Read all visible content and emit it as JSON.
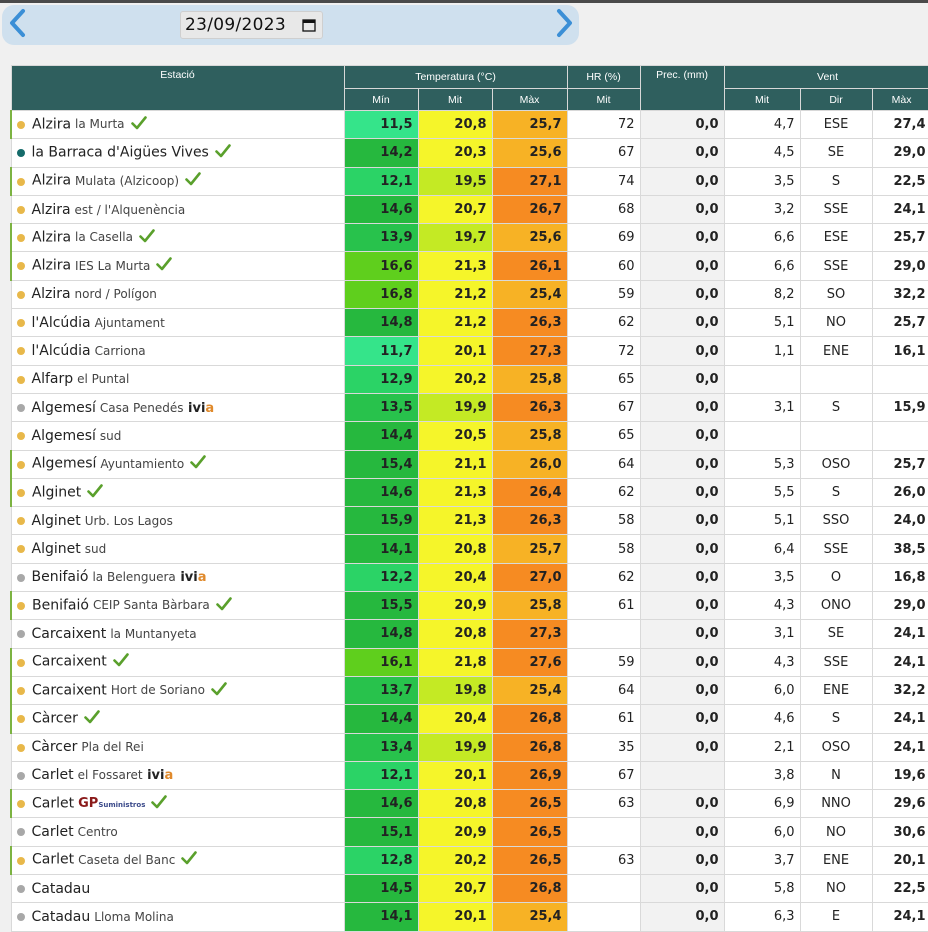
{
  "date": {
    "value": "23/09/2023"
  },
  "icons": {
    "prev": "chevron-left-icon",
    "next": "chevron-right-icon",
    "calendar": "calendar-icon",
    "check": "check-icon"
  },
  "colors": {
    "header_bg": "#2f5f5e",
    "check": "#5aa02c",
    "dot_orange": "#e8b84a",
    "dot_gray": "#a8a8a8",
    "dot_teal": "#156b6a"
  },
  "headers": {
    "station": "Estació",
    "temperature": "Temperatura (°C)",
    "hr": "HR (%)",
    "prec": "Prec. (mm)",
    "wind": "Vent",
    "min": "Mín",
    "mit": "Mit",
    "max": "Màx",
    "hr_mit": "Mit",
    "wind_mit": "Mit",
    "wind_dir": "Dir",
    "wind_max": "Màx"
  },
  "rows": [
    {
      "town": "Alzira",
      "sub": "la Murta",
      "check": true,
      "ivia": false,
      "gp": false,
      "dot": "#e8b84a",
      "bar": true,
      "min": "11,5",
      "mit": "20,8",
      "max": "25,7",
      "minc": "#35e48a",
      "mitc": "#f5f52a",
      "maxc": "#f7b225",
      "hr": "72",
      "prec": "0,0",
      "wmit": "4,7",
      "wdir": "ESE",
      "wmax": "27,4"
    },
    {
      "town": "la Barraca d'Aigües Vives",
      "sub": "",
      "check": true,
      "ivia": false,
      "gp": false,
      "dot": "#156b6a",
      "bar": false,
      "min": "14,2",
      "mit": "20,3",
      "max": "25,6",
      "minc": "#26b83e",
      "mitc": "#f5f52a",
      "maxc": "#f7b225",
      "hr": "67",
      "prec": "0,0",
      "wmit": "4,5",
      "wdir": "SE",
      "wmax": "29,0"
    },
    {
      "town": "Alzira",
      "sub": "Mulata (Alzicoop)",
      "check": true,
      "ivia": false,
      "gp": false,
      "dot": "#e8b84a",
      "bar": true,
      "min": "12,1",
      "mit": "19,5",
      "max": "27,1",
      "minc": "#2bd366",
      "mitc": "#c4ea24",
      "maxc": "#f68b22",
      "hr": "74",
      "prec": "0,0",
      "wmit": "3,5",
      "wdir": "S",
      "wmax": "22,5"
    },
    {
      "town": "Alzira",
      "sub": "est / l'Alquenència",
      "check": false,
      "ivia": false,
      "gp": false,
      "dot": "#e8b84a",
      "bar": false,
      "min": "14,6",
      "mit": "20,7",
      "max": "26,7",
      "minc": "#26b83e",
      "mitc": "#f5f52a",
      "maxc": "#f68b22",
      "hr": "68",
      "prec": "0,0",
      "wmit": "3,2",
      "wdir": "SSE",
      "wmax": "24,1"
    },
    {
      "town": "Alzira",
      "sub": "la Casella",
      "check": true,
      "ivia": false,
      "gp": false,
      "dot": "#e8b84a",
      "bar": true,
      "min": "13,9",
      "mit": "19,7",
      "max": "25,6",
      "minc": "#28c24c",
      "mitc": "#c4ea24",
      "maxc": "#f7b225",
      "hr": "69",
      "prec": "0,0",
      "wmit": "6,6",
      "wdir": "ESE",
      "wmax": "25,7"
    },
    {
      "town": "Alzira",
      "sub": "IES La Murta",
      "check": true,
      "ivia": false,
      "gp": false,
      "dot": "#e8b84a",
      "bar": true,
      "min": "16,6",
      "mit": "21,3",
      "max": "26,1",
      "minc": "#5fcf1d",
      "mitc": "#f5f52a",
      "maxc": "#f68b22",
      "hr": "60",
      "prec": "0,0",
      "wmit": "6,6",
      "wdir": "SSE",
      "wmax": "29,0"
    },
    {
      "town": "Alzira",
      "sub": "nord / Polígon",
      "check": false,
      "ivia": false,
      "gp": false,
      "dot": "#e8b84a",
      "bar": false,
      "min": "16,8",
      "mit": "21,2",
      "max": "25,4",
      "minc": "#5fcf1d",
      "mitc": "#f5f52a",
      "maxc": "#f7b225",
      "hr": "59",
      "prec": "0,0",
      "wmit": "8,2",
      "wdir": "SO",
      "wmax": "32,2"
    },
    {
      "town": "l'Alcúdia",
      "sub": "Ajuntament",
      "check": false,
      "ivia": false,
      "gp": false,
      "dot": "#e8b84a",
      "bar": false,
      "min": "14,8",
      "mit": "21,2",
      "max": "26,3",
      "minc": "#26b83e",
      "mitc": "#f5f52a",
      "maxc": "#f68b22",
      "hr": "62",
      "prec": "0,0",
      "wmit": "5,1",
      "wdir": "NO",
      "wmax": "25,7"
    },
    {
      "town": "l'Alcúdia",
      "sub": "Carriona",
      "check": false,
      "ivia": false,
      "gp": false,
      "dot": "#e8b84a",
      "bar": false,
      "min": "11,7",
      "mit": "20,1",
      "max": "27,3",
      "minc": "#35e48a",
      "mitc": "#f5f52a",
      "maxc": "#f68b22",
      "hr": "72",
      "prec": "0,0",
      "wmit": "1,1",
      "wdir": "ENE",
      "wmax": "16,1"
    },
    {
      "town": "Alfarp",
      "sub": "el Puntal",
      "check": false,
      "ivia": false,
      "gp": false,
      "dot": "#e8b84a",
      "bar": false,
      "min": "12,9",
      "mit": "20,2",
      "max": "25,8",
      "minc": "#2bd366",
      "mitc": "#f5f52a",
      "maxc": "#f7b225",
      "hr": "65",
      "prec": "0,0",
      "wmit": "",
      "wdir": "",
      "wmax": ""
    },
    {
      "town": "Algemesí",
      "sub": "Casa Penedés",
      "check": false,
      "ivia": true,
      "gp": false,
      "dot": "#a8a8a8",
      "bar": false,
      "min": "13,5",
      "mit": "19,9",
      "max": "26,3",
      "minc": "#28c24c",
      "mitc": "#c4ea24",
      "maxc": "#f68b22",
      "hr": "67",
      "prec": "0,0",
      "wmit": "3,1",
      "wdir": "S",
      "wmax": "15,9"
    },
    {
      "town": "Algemesí",
      "sub": "sud",
      "check": false,
      "ivia": false,
      "gp": false,
      "dot": "#e8b84a",
      "bar": false,
      "min": "14,4",
      "mit": "20,5",
      "max": "25,8",
      "minc": "#26b83e",
      "mitc": "#f5f52a",
      "maxc": "#f7b225",
      "hr": "65",
      "prec": "0,0",
      "wmit": "",
      "wdir": "",
      "wmax": ""
    },
    {
      "town": "Algemesí",
      "sub": "Ayuntamiento",
      "check": true,
      "ivia": false,
      "gp": false,
      "dot": "#e8b84a",
      "bar": true,
      "min": "15,4",
      "mit": "21,1",
      "max": "26,0",
      "minc": "#26b83e",
      "mitc": "#f5f52a",
      "maxc": "#f7b225",
      "hr": "64",
      "prec": "0,0",
      "wmit": "5,3",
      "wdir": "OSO",
      "wmax": "25,7"
    },
    {
      "town": "Alginet",
      "sub": "",
      "check": true,
      "ivia": false,
      "gp": false,
      "dot": "#e8b84a",
      "bar": true,
      "min": "14,6",
      "mit": "21,3",
      "max": "26,4",
      "minc": "#26b83e",
      "mitc": "#f5f52a",
      "maxc": "#f68b22",
      "hr": "62",
      "prec": "0,0",
      "wmit": "5,5",
      "wdir": "S",
      "wmax": "26,0"
    },
    {
      "town": "Alginet",
      "sub": "Urb. Los Lagos",
      "check": false,
      "ivia": false,
      "gp": false,
      "dot": "#e8b84a",
      "bar": false,
      "min": "15,9",
      "mit": "21,3",
      "max": "26,3",
      "minc": "#26b83e",
      "mitc": "#f5f52a",
      "maxc": "#f68b22",
      "hr": "58",
      "prec": "0,0",
      "wmit": "5,1",
      "wdir": "SSO",
      "wmax": "24,0"
    },
    {
      "town": "Alginet",
      "sub": "sud",
      "check": false,
      "ivia": false,
      "gp": false,
      "dot": "#e8b84a",
      "bar": false,
      "min": "14,1",
      "mit": "20,8",
      "max": "25,7",
      "minc": "#26b83e",
      "mitc": "#f5f52a",
      "maxc": "#f7b225",
      "hr": "58",
      "prec": "0,0",
      "wmit": "6,4",
      "wdir": "SSE",
      "wmax": "38,5"
    },
    {
      "town": "Benifaió",
      "sub": "la Belenguera",
      "check": false,
      "ivia": true,
      "gp": false,
      "dot": "#a8a8a8",
      "bar": false,
      "min": "12,2",
      "mit": "20,4",
      "max": "27,0",
      "minc": "#2bd366",
      "mitc": "#f5f52a",
      "maxc": "#f68b22",
      "hr": "62",
      "prec": "0,0",
      "wmit": "3,5",
      "wdir": "O",
      "wmax": "16,8"
    },
    {
      "town": "Benifaió",
      "sub": "CEIP Santa Bàrbara",
      "check": true,
      "ivia": false,
      "gp": false,
      "dot": "#e8b84a",
      "bar": true,
      "min": "15,5",
      "mit": "20,9",
      "max": "25,8",
      "minc": "#26b83e",
      "mitc": "#f5f52a",
      "maxc": "#f7b225",
      "hr": "61",
      "prec": "0,0",
      "wmit": "4,3",
      "wdir": "ONO",
      "wmax": "29,0"
    },
    {
      "town": "Carcaixent",
      "sub": "la Muntanyeta",
      "check": false,
      "ivia": false,
      "gp": false,
      "dot": "#a8a8a8",
      "bar": false,
      "min": "14,8",
      "mit": "20,8",
      "max": "27,3",
      "minc": "#26b83e",
      "mitc": "#f5f52a",
      "maxc": "#f68b22",
      "hr": "",
      "prec": "0,0",
      "wmit": "3,1",
      "wdir": "SE",
      "wmax": "24,1"
    },
    {
      "town": "Carcaixent",
      "sub": "",
      "check": true,
      "ivia": false,
      "gp": false,
      "dot": "#e8b84a",
      "bar": true,
      "min": "16,1",
      "mit": "21,8",
      "max": "27,6",
      "minc": "#5fcf1d",
      "mitc": "#f5f52a",
      "maxc": "#f68b22",
      "hr": "59",
      "prec": "0,0",
      "wmit": "4,3",
      "wdir": "SSE",
      "wmax": "24,1"
    },
    {
      "town": "Carcaixent",
      "sub": "Hort de Soriano",
      "check": true,
      "ivia": false,
      "gp": false,
      "dot": "#e8b84a",
      "bar": true,
      "min": "13,7",
      "mit": "19,8",
      "max": "25,4",
      "minc": "#28c24c",
      "mitc": "#c4ea24",
      "maxc": "#f7b225",
      "hr": "64",
      "prec": "0,0",
      "wmit": "6,0",
      "wdir": "ENE",
      "wmax": "32,2"
    },
    {
      "town": "Càrcer",
      "sub": "",
      "check": true,
      "ivia": false,
      "gp": false,
      "dot": "#e8b84a",
      "bar": true,
      "min": "14,4",
      "mit": "20,4",
      "max": "26,8",
      "minc": "#26b83e",
      "mitc": "#f5f52a",
      "maxc": "#f68b22",
      "hr": "61",
      "prec": "0,0",
      "wmit": "4,6",
      "wdir": "S",
      "wmax": "24,1"
    },
    {
      "town": "Càrcer",
      "sub": "Pla del Rei",
      "check": false,
      "ivia": false,
      "gp": false,
      "dot": "#e8b84a",
      "bar": false,
      "min": "13,4",
      "mit": "19,9",
      "max": "26,8",
      "minc": "#28c24c",
      "mitc": "#c4ea24",
      "maxc": "#f68b22",
      "hr": "35",
      "prec": "0,0",
      "wmit": "2,1",
      "wdir": "OSO",
      "wmax": "24,1"
    },
    {
      "town": "Carlet",
      "sub": "el Fossaret",
      "check": false,
      "ivia": true,
      "gp": false,
      "dot": "#a8a8a8",
      "bar": false,
      "min": "12,1",
      "mit": "20,1",
      "max": "26,9",
      "minc": "#2bd366",
      "mitc": "#f5f52a",
      "maxc": "#f68b22",
      "hr": "67",
      "prec": "",
      "wmit": "3,8",
      "wdir": "N",
      "wmax": "19,6"
    },
    {
      "town": "Carlet",
      "sub": "",
      "check": true,
      "ivia": false,
      "gp": true,
      "dot": "#e8b84a",
      "bar": true,
      "min": "14,6",
      "mit": "20,8",
      "max": "26,5",
      "minc": "#26b83e",
      "mitc": "#f5f52a",
      "maxc": "#f68b22",
      "hr": "63",
      "prec": "0,0",
      "wmit": "6,9",
      "wdir": "NNO",
      "wmax": "29,6"
    },
    {
      "town": "Carlet",
      "sub": "Centro",
      "check": false,
      "ivia": false,
      "gp": false,
      "dot": "#a8a8a8",
      "bar": false,
      "min": "15,1",
      "mit": "20,9",
      "max": "26,5",
      "minc": "#26b83e",
      "mitc": "#f5f52a",
      "maxc": "#f68b22",
      "hr": "",
      "prec": "0,0",
      "wmit": "6,0",
      "wdir": "NO",
      "wmax": "30,6"
    },
    {
      "town": "Carlet",
      "sub": "Caseta del Banc",
      "check": true,
      "ivia": false,
      "gp": false,
      "dot": "#e8b84a",
      "bar": true,
      "min": "12,8",
      "mit": "20,2",
      "max": "26,5",
      "minc": "#2bd366",
      "mitc": "#f5f52a",
      "maxc": "#f68b22",
      "hr": "63",
      "prec": "0,0",
      "wmit": "3,7",
      "wdir": "ENE",
      "wmax": "20,1"
    },
    {
      "town": "Catadau",
      "sub": "",
      "check": false,
      "ivia": false,
      "gp": false,
      "dot": "#a8a8a8",
      "bar": false,
      "min": "14,5",
      "mit": "20,7",
      "max": "26,8",
      "minc": "#26b83e",
      "mitc": "#f5f52a",
      "maxc": "#f68b22",
      "hr": "",
      "prec": "0,0",
      "wmit": "5,8",
      "wdir": "NO",
      "wmax": "22,5"
    },
    {
      "town": "Catadau",
      "sub": "Lloma Molina",
      "check": false,
      "ivia": false,
      "gp": false,
      "dot": "#a8a8a8",
      "bar": false,
      "min": "14,1",
      "mit": "20,1",
      "max": "25,4",
      "minc": "#26b83e",
      "mitc": "#f5f52a",
      "maxc": "#f7b225",
      "hr": "",
      "prec": "0,0",
      "wmit": "6,3",
      "wdir": "E",
      "wmax": "24,1"
    }
  ]
}
